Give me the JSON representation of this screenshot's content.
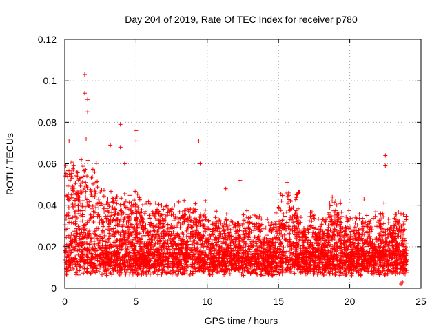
{
  "chart_data": {
    "type": "scatter",
    "title": "Day 204 of 2019, Rate Of TEC Index for receiver p780",
    "xlabel": "GPS time / hours",
    "ylabel": "ROTI / TECUs",
    "xlim": [
      0,
      25
    ],
    "ylim": [
      0,
      0.12
    ],
    "x_ticks": [
      0,
      5,
      10,
      15,
      20,
      25
    ],
    "x_tick_labels": [
      "0",
      "5",
      "10",
      "15",
      "20",
      "25"
    ],
    "y_ticks": [
      0,
      0.02,
      0.04,
      0.06,
      0.08,
      0.1,
      0.12
    ],
    "y_tick_labels": [
      "0",
      "0.02",
      "0.04",
      "0.06",
      "0.08",
      "0.1",
      "0.12"
    ],
    "grid": true,
    "marker": "+",
    "series": [
      {
        "name": "ROTI",
        "color": "#ff0000",
        "peaks": [
          {
            "x": 1.4,
            "y": 0.103
          },
          {
            "x": 1.4,
            "y": 0.094
          },
          {
            "x": 1.6,
            "y": 0.091
          },
          {
            "x": 1.6,
            "y": 0.085
          },
          {
            "x": 0.3,
            "y": 0.071
          },
          {
            "x": 1.5,
            "y": 0.072
          },
          {
            "x": 3.9,
            "y": 0.079
          },
          {
            "x": 3.9,
            "y": 0.068
          },
          {
            "x": 5.0,
            "y": 0.076
          },
          {
            "x": 5.0,
            "y": 0.071
          },
          {
            "x": 3.2,
            "y": 0.069
          },
          {
            "x": 9.4,
            "y": 0.071
          },
          {
            "x": 9.5,
            "y": 0.06
          },
          {
            "x": 4.2,
            "y": 0.06
          },
          {
            "x": 22.5,
            "y": 0.064
          },
          {
            "x": 22.5,
            "y": 0.059
          },
          {
            "x": 22.4,
            "y": 0.041
          },
          {
            "x": 12.3,
            "y": 0.052
          },
          {
            "x": 11.3,
            "y": 0.048
          },
          {
            "x": 15.6,
            "y": 0.051
          },
          {
            "x": 19.0,
            "y": 0.042
          },
          {
            "x": 21.0,
            "y": 0.043
          },
          {
            "x": 23.7,
            "y": 0.003
          },
          {
            "x": 23.6,
            "y": 0.002
          }
        ]
      }
    ]
  }
}
